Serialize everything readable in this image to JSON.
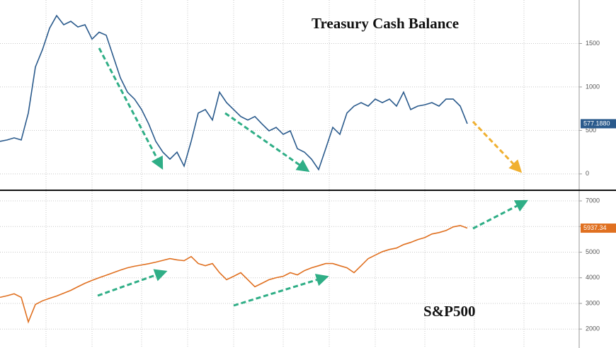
{
  "chart_data": [
    {
      "type": "line",
      "title": "Treasury Cash Balance",
      "color": "#2a5a8c",
      "values": [
        375,
        390,
        415,
        390,
        700,
        1230,
        1430,
        1675,
        1820,
        1715,
        1755,
        1690,
        1715,
        1550,
        1630,
        1595,
        1350,
        1105,
        940,
        860,
        740,
        575,
        375,
        250,
        170,
        250,
        90,
        375,
        700,
        740,
        620,
        940,
        820,
        740,
        660,
        620,
        660,
        575,
        495,
        535,
        455,
        495,
        290,
        250,
        170,
        50,
        290,
        535,
        455,
        700,
        780,
        820,
        780,
        860,
        820,
        860,
        780,
        940,
        740,
        780,
        795,
        820,
        780,
        860,
        860,
        780,
        577.188
      ],
      "ylim": [
        -180,
        2000
      ],
      "yticks": [
        0,
        500,
        1000,
        1500
      ],
      "grid": true,
      "last_value": {
        "value": 577.188,
        "label": "577.1880"
      }
    },
    {
      "type": "line",
      "title": "S&P500",
      "color": "#e07020",
      "values": [
        3235,
        3300,
        3375,
        3235,
        2275,
        2960,
        3100,
        3200,
        3290,
        3400,
        3510,
        3650,
        3785,
        3900,
        4005,
        4100,
        4200,
        4300,
        4390,
        4450,
        4500,
        4550,
        4610,
        4680,
        4750,
        4700,
        4665,
        4830,
        4555,
        4470,
        4555,
        4200,
        3925,
        4060,
        4200,
        3925,
        3650,
        3785,
        3925,
        4005,
        4060,
        4200,
        4115,
        4280,
        4390,
        4470,
        4555,
        4555,
        4470,
        4390,
        4200,
        4470,
        4750,
        4885,
        5020,
        5105,
        5160,
        5295,
        5380,
        5490,
        5570,
        5710,
        5765,
        5845,
        5985,
        6040,
        5937.34
      ],
      "ylim": [
        1260,
        7360
      ],
      "yticks": [
        2000,
        3000,
        4000,
        5000,
        6000,
        7000
      ],
      "grid": true,
      "last_value": {
        "value": 5937.34,
        "label": "5937.34"
      }
    }
  ]
}
